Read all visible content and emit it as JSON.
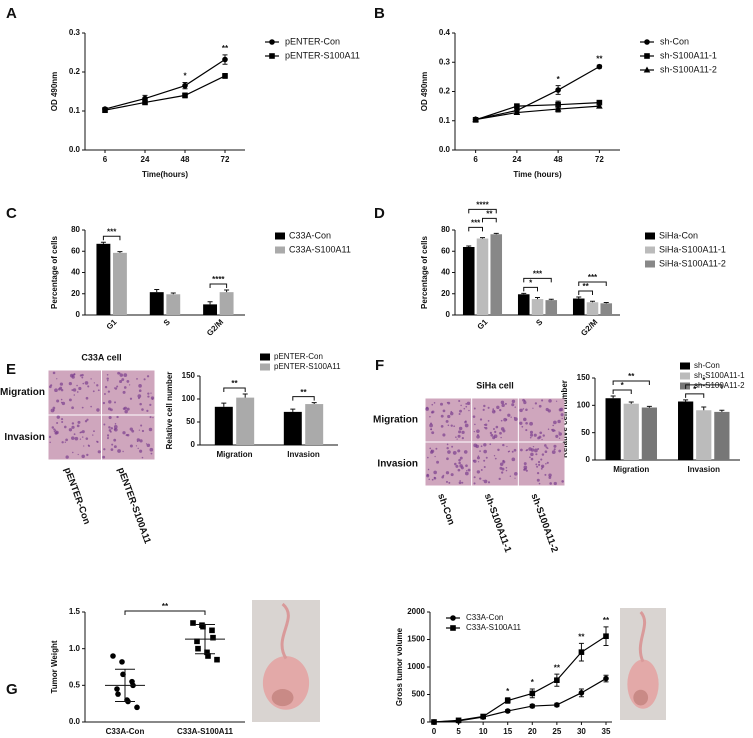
{
  "chart_data": [
    {
      "panel": "A",
      "type": "line",
      "categories": [
        "6",
        "24",
        "48",
        "72"
      ],
      "xlabel": "Time(hours)",
      "ylabel": "OD 490nm",
      "ylim": [
        0,
        0.3
      ],
      "yticks": [
        {
          "value": 0,
          "label": "0.0"
        },
        0.1,
        0.2,
        0.3
      ],
      "series": [
        {
          "name": "pENTER-Con",
          "color": "#000000",
          "marker": "circle",
          "values": [
            0.105,
            0.132,
            0.165,
            0.232
          ],
          "errors": [
            0.004,
            0.008,
            0.008,
            0.012
          ]
        },
        {
          "name": "pENTER-S100A11",
          "color": "#000000",
          "marker": "square",
          "values": [
            0.102,
            0.122,
            0.14,
            0.19
          ],
          "errors": [
            0.003,
            0.005,
            0.006,
            0.006
          ]
        }
      ],
      "annotations": [
        {
          "category": "48",
          "text": "*"
        },
        {
          "category": "72",
          "text": "**"
        }
      ]
    },
    {
      "panel": "B",
      "type": "line",
      "categories": [
        "6",
        "24",
        "48",
        "72"
      ],
      "xlabel": "Time (hours)",
      "ylabel": "OD 490nm",
      "ylim": [
        0,
        0.4
      ],
      "yticks": [
        {
          "value": 0,
          "label": "0.0"
        },
        0.1,
        0.2,
        0.3,
        0.4
      ],
      "series": [
        {
          "name": "sh-Con",
          "color": "#000000",
          "marker": "circle",
          "values": [
            0.105,
            0.135,
            0.205,
            0.285
          ],
          "errors": [
            0.005,
            0.01,
            0.015,
            0.005
          ]
        },
        {
          "name": "sh-S100A11-1",
          "color": "#000000",
          "marker": "square",
          "values": [
            0.103,
            0.15,
            0.155,
            0.162
          ],
          "errors": [
            0.004,
            0.006,
            0.012,
            0.006
          ]
        },
        {
          "name": "sh-S100A11-2",
          "color": "#000000",
          "marker": "triangle",
          "values": [
            0.104,
            0.128,
            0.14,
            0.15
          ],
          "errors": [
            0.004,
            0.006,
            0.01,
            0.006
          ]
        }
      ],
      "annotations": [
        {
          "category": "48",
          "text": "*"
        },
        {
          "category": "72",
          "text": "**"
        }
      ]
    },
    {
      "panel": "C",
      "type": "bar",
      "categories": [
        "G1",
        "S",
        "G2/M"
      ],
      "ylabel": "Percentage of cells",
      "ylim": [
        0,
        80
      ],
      "yticks": [
        0,
        20,
        40,
        60,
        80
      ],
      "series": [
        {
          "name": "C33A-Con",
          "color": "#000000",
          "values": [
            67,
            21.5,
            10
          ],
          "errors": [
            1.5,
            2.5,
            2.5
          ]
        },
        {
          "name": "C33A-S100A11",
          "color": "#aaaaaa",
          "values": [
            58.5,
            19.5,
            21.5
          ],
          "errors": [
            1.2,
            1.2,
            2
          ]
        }
      ],
      "significance": [
        {
          "category": "G1",
          "series": [
            "C33A-Con",
            "C33A-S100A11"
          ],
          "text": "***"
        },
        {
          "category": "G2/M",
          "series": [
            "C33A-Con",
            "C33A-S100A11"
          ],
          "text": "****"
        }
      ]
    },
    {
      "panel": "D",
      "type": "bar",
      "categories": [
        "G1",
        "S",
        "G2/M"
      ],
      "ylabel": "Percentage of cells",
      "ylim": [
        0,
        80
      ],
      "yticks": [
        0,
        20,
        40,
        60,
        80
      ],
      "series": [
        {
          "name": "SiHa-Con",
          "color": "#000000",
          "values": [
            64,
            19.5,
            15.5
          ],
          "errors": [
            1,
            0.8,
            1.5
          ]
        },
        {
          "name": "SiHa-S100A11-1",
          "color": "#bbbbbb",
          "values": [
            72,
            15,
            12
          ],
          "errors": [
            0.8,
            1.5,
            1
          ]
        },
        {
          "name": "SiHa-S100A11-2",
          "color": "#888888",
          "values": [
            76,
            14,
            11
          ],
          "errors": [
            0.8,
            0.8,
            0.8
          ]
        }
      ],
      "significance": [
        {
          "category": "G1",
          "series": [
            "SiHa-Con",
            "SiHa-S100A11-1"
          ],
          "text": "***"
        },
        {
          "category": "G1",
          "series": [
            "SiHa-S100A11-1",
            "SiHa-S100A11-2"
          ],
          "text": "**"
        },
        {
          "category": "G1",
          "series": [
            "SiHa-Con",
            "SiHa-S100A11-2"
          ],
          "text": "****"
        },
        {
          "category": "S",
          "series": [
            "SiHa-Con",
            "SiHa-S100A11-1"
          ],
          "text": "*"
        },
        {
          "category": "S",
          "series": [
            "SiHa-Con",
            "SiHa-S100A11-2"
          ],
          "text": "***"
        },
        {
          "category": "G2/M",
          "series": [
            "SiHa-Con",
            "SiHa-S100A11-1"
          ],
          "text": "**"
        },
        {
          "category": "G2/M",
          "series": [
            "SiHa-Con",
            "SiHa-S100A11-2"
          ],
          "text": "***"
        }
      ]
    },
    {
      "type": "bar",
      "categories": [
        "Migration",
        "Invasion"
      ],
      "ylabel": "Relative cell number",
      "ylim": [
        0,
        150
      ],
      "yticks": [
        0,
        50,
        100,
        150
      ],
      "series": [
        {
          "name": "pENTER-Con",
          "color": "#000000",
          "values": [
            83,
            72
          ],
          "errors": [
            8,
            6
          ]
        },
        {
          "name": "pENTER-S100A11",
          "color": "#aaaaaa",
          "values": [
            103,
            89
          ],
          "errors": [
            8,
            3
          ]
        }
      ],
      "significance": [
        {
          "category": "Migration",
          "series": [
            "pENTER-Con",
            "pENTER-S100A11"
          ],
          "text": "**"
        },
        {
          "category": "Invasion",
          "series": [
            "pENTER-Con",
            "pENTER-S100A11"
          ],
          "text": "**"
        }
      ]
    },
    {
      "type": "bar",
      "categories": [
        "Migration",
        "Invasion"
      ],
      "ylabel": "Relative cell number",
      "ylim": [
        0,
        150
      ],
      "yticks": [
        0,
        50,
        100,
        150
      ],
      "series": [
        {
          "name": "sh-Con",
          "color": "#000000",
          "values": [
            113,
            107
          ],
          "errors": [
            4,
            3
          ]
        },
        {
          "name": "sh-S100A11-1",
          "color": "#bbbbbb",
          "values": [
            103,
            91
          ],
          "errors": [
            3,
            6
          ]
        },
        {
          "name": "sh-S100A11-2",
          "color": "#777777",
          "values": [
            96,
            88
          ],
          "errors": [
            2,
            3
          ]
        }
      ],
      "significance": [
        {
          "category": "Migration",
          "series": [
            "sh-Con",
            "sh-S100A11-1"
          ],
          "text": "*"
        },
        {
          "category": "Migration",
          "series": [
            "sh-Con",
            "sh-S100A11-2"
          ],
          "text": "**"
        },
        {
          "category": "Invasion",
          "series": [
            "sh-Con",
            "sh-S100A11-1"
          ],
          "text": "*"
        },
        {
          "category": "Invasion",
          "series": [
            "sh-Con",
            "sh-S100A11-2"
          ],
          "text": "*"
        }
      ]
    },
    {
      "panel": "G",
      "type": "dot",
      "categories": [
        "C33A-Con",
        "C33A-S100A11"
      ],
      "ylabel": "Tumor Weight",
      "ylim": [
        0,
        1.5
      ],
      "yticks": [
        {
          "value": 0,
          "label": "0.0"
        },
        0.5,
        {
          "value": 1,
          "label": "1.0"
        },
        1.5
      ],
      "markers": [
        "circle",
        "square"
      ],
      "color": "#000000",
      "points": [
        [
          0.9,
          0.82,
          0.65,
          0.55,
          0.5,
          0.45,
          0.38,
          0.3,
          0.28,
          0.2
        ],
        [
          1.35,
          1.32,
          1.3,
          1.25,
          1.15,
          1.1,
          1.0,
          0.95,
          0.9,
          0.85
        ]
      ],
      "means": [
        0.5,
        1.13
      ],
      "sds": [
        0.22,
        0.2
      ],
      "significance": [
        {
          "categories": [
            "C33A-Con",
            "C33A-S100A11"
          ],
          "text": "**"
        }
      ]
    },
    {
      "type": "line",
      "x": [
        0,
        5,
        10,
        15,
        20,
        25,
        30,
        35
      ],
      "xlim": [
        0,
        35
      ],
      "xticks": [
        0,
        5,
        10,
        15,
        20,
        25,
        30,
        35
      ],
      "ylabel": "Gross tumor volume",
      "ylim": [
        0,
        2000
      ],
      "yticks": [
        0,
        500,
        1000,
        1500,
        2000
      ],
      "series": [
        {
          "name": "C33A-Con",
          "color": "#000000",
          "marker": "circle",
          "values": [
            0,
            20,
            90,
            200,
            290,
            310,
            530,
            790
          ],
          "errors": [
            0,
            5,
            15,
            25,
            30,
            30,
            70,
            60
          ]
        },
        {
          "name": "C33A-S100A11",
          "color": "#000000",
          "marker": "square",
          "values": [
            0,
            30,
            100,
            390,
            520,
            760,
            1270,
            1560
          ],
          "errors": [
            0,
            5,
            20,
            50,
            80,
            110,
            160,
            170
          ]
        }
      ],
      "annotations": [
        {
          "x": 15,
          "text": "*"
        },
        {
          "x": 20,
          "text": "*"
        },
        {
          "x": 25,
          "text": "**"
        },
        {
          "x": 30,
          "text": "**"
        },
        {
          "x": 35,
          "text": "**"
        }
      ]
    }
  ],
  "micrographs": [
    {
      "panel": "E",
      "title": "C33A cell",
      "rows": [
        "Migration",
        "Invasion"
      ],
      "columns": [
        "pENTER-Con",
        "pENTER-S100A11"
      ]
    },
    {
      "panel": "F",
      "title": "SiHa cell",
      "rows": [
        "Migration",
        "Invasion"
      ],
      "columns": [
        "sh-Con",
        "sh-S100A11-1",
        "sh-S100A11-2"
      ]
    }
  ]
}
